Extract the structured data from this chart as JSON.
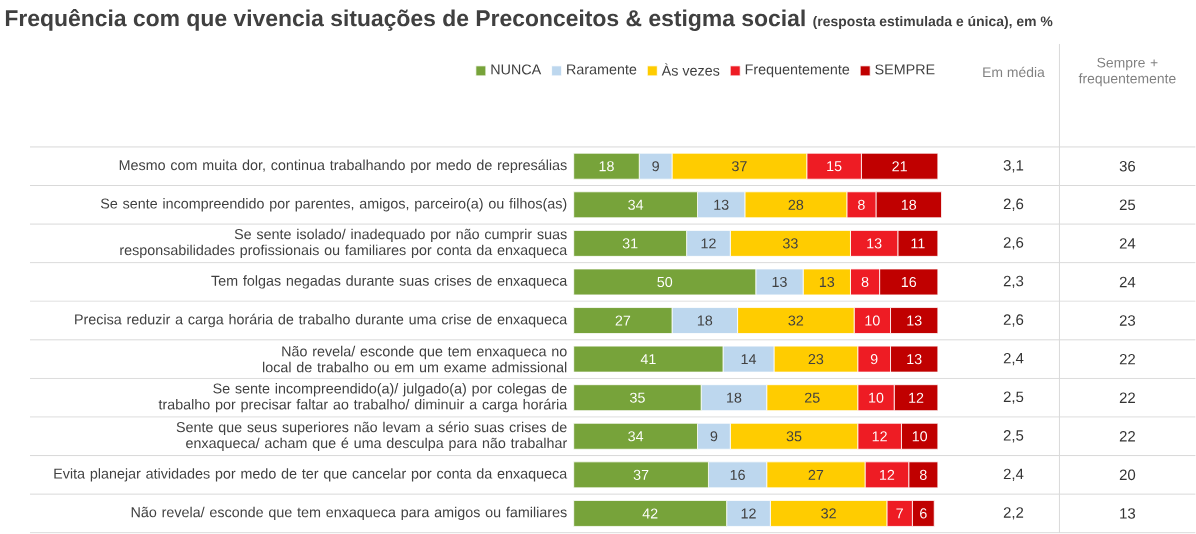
{
  "chart_data": {
    "type": "bar",
    "orientation": "horizontal",
    "stacked": true,
    "data_labels": true,
    "legend": "top",
    "tick_labels": "y",
    "title": "Frequência com que vivencia situações de Preconceitos & estigma social",
    "subtitle": "(resposta estimulada e única), em %",
    "categories": [
      "Mesmo com muita dor, continua trabalhando por medo de represálias",
      "Se sente incompreendido por parentes, amigos, parceiro(a) ou filhos(as)",
      "Se sente isolado/ inadequado por não cumprir suas responsabilidades profissionais ou familiares por conta da enxaqueca",
      "Tem folgas negadas durante suas crises de enxaqueca",
      "Precisa reduzir a carga horária de trabalho durante uma crise de enxaqueca",
      "Não revela/ esconde que tem enxaqueca no local de trabalho ou em um exame admissional",
      "Se sente incompreendido(a)/ julgado(a) por colegas de trabalho por precisar faltar ao trabalho/ diminuir a carga horária",
      "Sente que seus superiores não levam a sério suas crises de enxaqueca/ acham que é uma desculpa para não trabalhar",
      "Evita planejar atividades por medo de ter que cancelar por conta da enxaqueca",
      "Não revela/ esconde que tem enxaqueca para amigos ou familiares"
    ],
    "series": [
      {
        "name": "NUNCA",
        "color": "#77a33a",
        "values": [
          18,
          34,
          31,
          50,
          27,
          41,
          35,
          34,
          37,
          42
        ]
      },
      {
        "name": "Raramente",
        "color": "#bdd7ee",
        "values": [
          9,
          13,
          12,
          13,
          18,
          14,
          18,
          9,
          16,
          12
        ]
      },
      {
        "name": "Às vezes",
        "color": "#ffcc00",
        "values": [
          37,
          28,
          33,
          13,
          32,
          23,
          25,
          35,
          27,
          32
        ]
      },
      {
        "name": "Frequentemente",
        "color": "#ee1c24",
        "values": [
          15,
          8,
          13,
          8,
          10,
          9,
          10,
          12,
          12,
          7
        ]
      },
      {
        "name": "SEMPRE",
        "color": "#c00000",
        "values": [
          21,
          18,
          11,
          16,
          13,
          13,
          12,
          10,
          8,
          6
        ]
      }
    ],
    "annotations": [
      "Em média",
      "Sempre + frequentemente",
      "3,1",
      "36",
      "2,6",
      "25",
      "2,6",
      "24",
      "2,3",
      "24",
      "2,6",
      "23",
      "2,4",
      "22",
      "2,5",
      "22",
      "2,5",
      "22",
      "2,4",
      "20",
      "2,2",
      "13"
    ]
  }
}
